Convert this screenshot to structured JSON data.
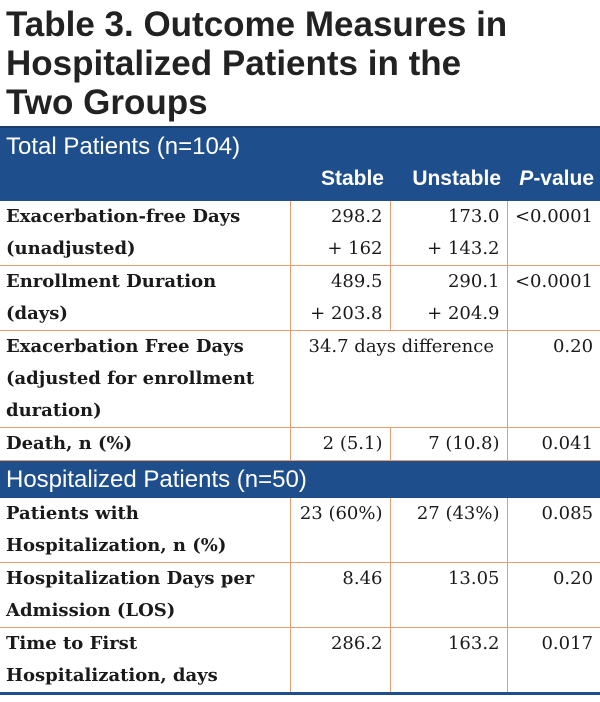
{
  "title_lines": [
    "Table 3. Outcome Measures in",
    "Hospitalized Patients in the",
    "Two Groups"
  ],
  "sections": [
    {
      "label": "Total Patients (n=104)",
      "headers": {
        "stable": "Stable",
        "unstable": "Unstable",
        "p_italic": "P",
        "p_rest": "-value"
      },
      "rows": [
        {
          "label_lines": [
            "Exacerbation-free Days",
            "(unadjusted)"
          ],
          "stable_lines": [
            "298.2",
            "+ 162"
          ],
          "unstable_lines": [
            "173.0",
            "+ 143.2"
          ],
          "p": "<0.0001"
        },
        {
          "label_lines": [
            "Enrollment Duration",
            "(days)"
          ],
          "stable_lines": [
            "489.5",
            "+ 203.8"
          ],
          "unstable_lines": [
            "290.1",
            "+ 204.9"
          ],
          "p": "<0.0001"
        },
        {
          "label_lines": [
            "Exacerbation Free Days",
            "(adjusted for enrollment",
            "duration)"
          ],
          "merged": "34.7 days difference",
          "p": "0.20"
        },
        {
          "label_lines": [
            "Death, n (%)"
          ],
          "stable_lines": [
            "2 (5.1)"
          ],
          "unstable_lines": [
            "7 (10.8)"
          ],
          "p": "0.041"
        }
      ]
    },
    {
      "label": "Hospitalized Patients (n=50)",
      "rows": [
        {
          "label_lines": [
            "Patients with",
            "Hospitalization, n (%)"
          ],
          "stable_lines": [
            "23 (60%)"
          ],
          "unstable_lines": [
            "27 (43%)"
          ],
          "p": "0.085"
        },
        {
          "label_lines": [
            "Hospitalization Days per",
            "Admission (LOS)"
          ],
          "stable_lines": [
            "8.46"
          ],
          "unstable_lines": [
            "13.05"
          ],
          "p": "0.20"
        },
        {
          "label_lines": [
            "Time to First",
            "Hospitalization, days"
          ],
          "stable_lines": [
            "286.2"
          ],
          "unstable_lines": [
            "163.2"
          ],
          "p": "0.017"
        }
      ]
    }
  ],
  "colors": {
    "header_bg": "#1f4e8c",
    "rule": "#e89c70",
    "title_text": "#222222"
  }
}
